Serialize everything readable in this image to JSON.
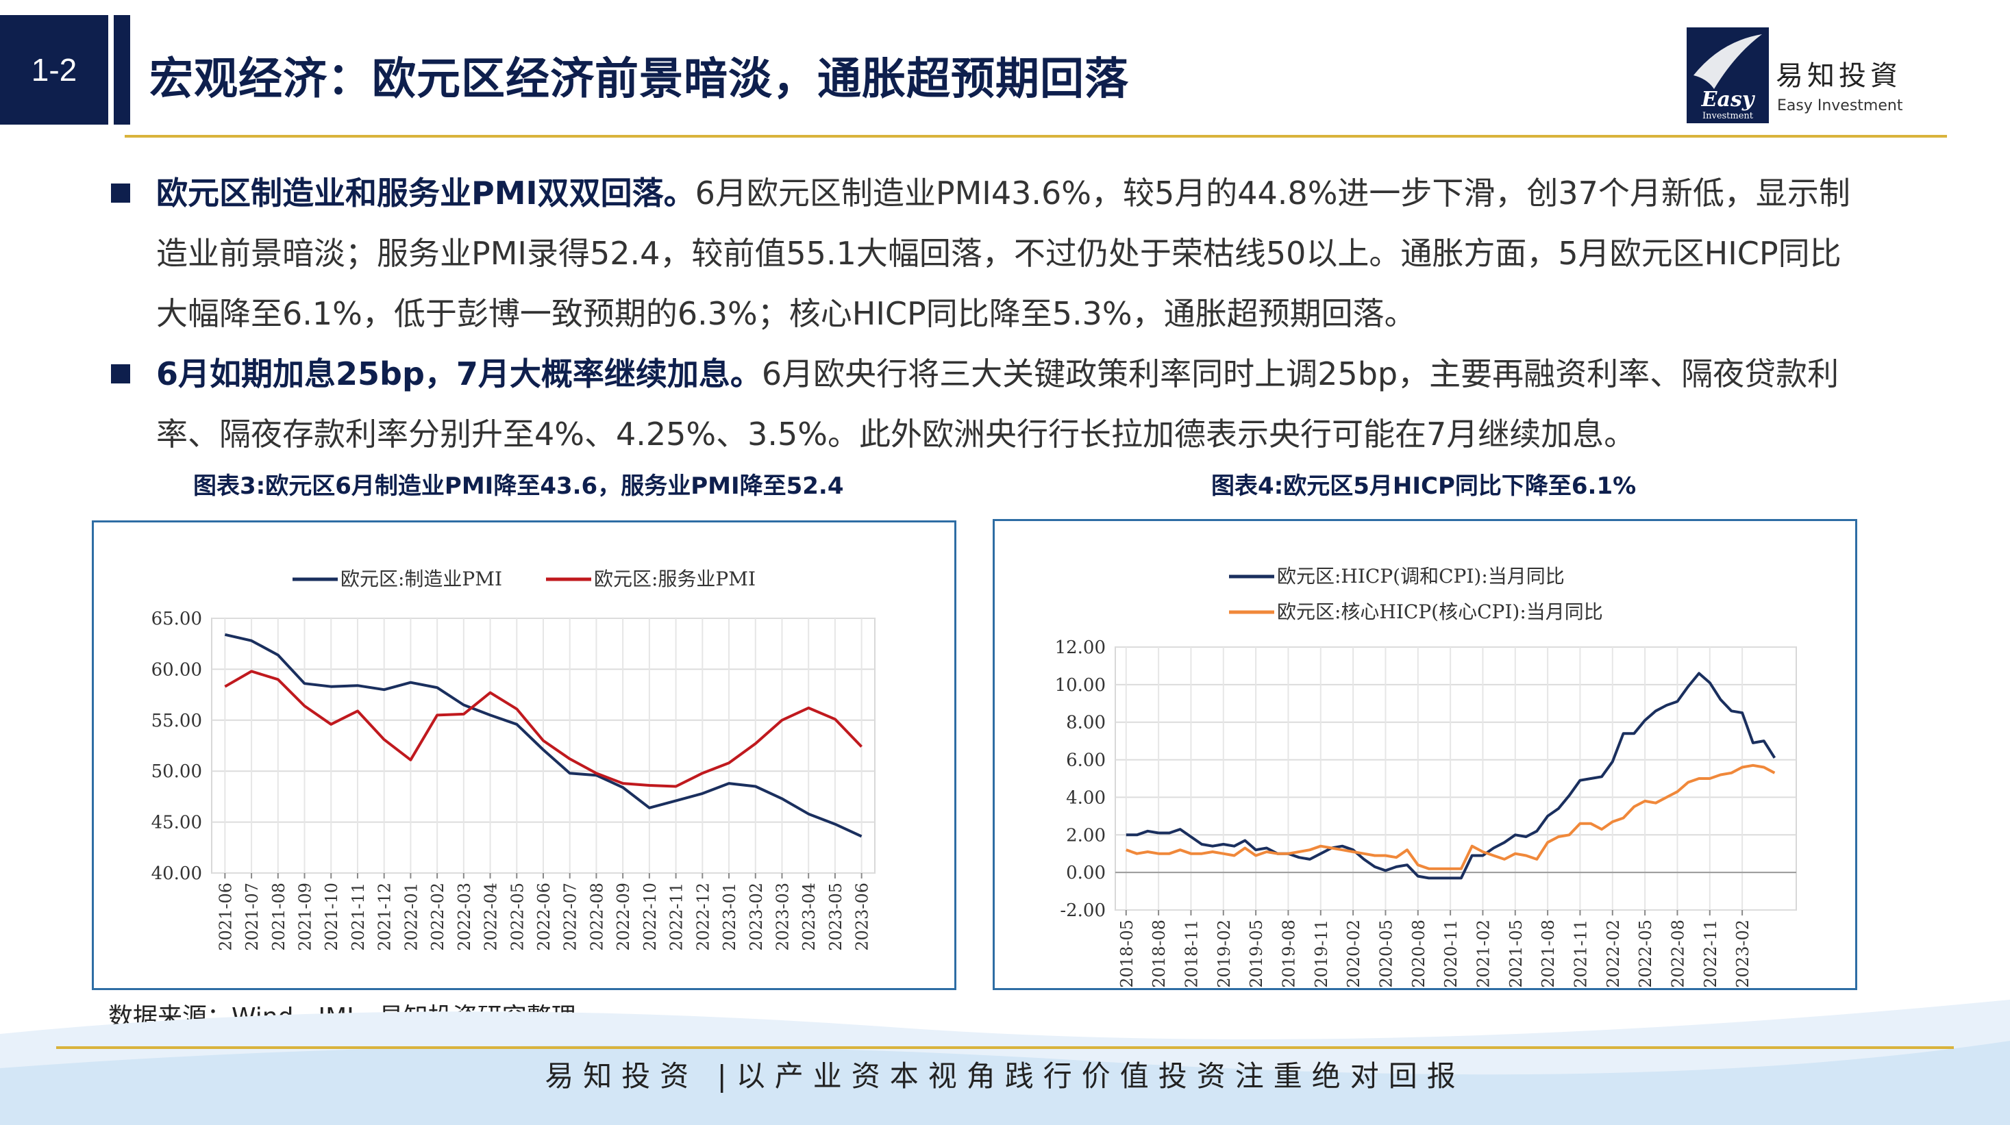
{
  "header": {
    "section_no": "1-2",
    "title": "宏观经济：欧元区经济前景暗淡，通胀超预期回落",
    "logo_cn": "易知投資",
    "logo_en": "Easy Investment",
    "logo_mark_text": "Easy",
    "logo_mark_sub": "Investment"
  },
  "bullets": [
    {
      "lead": "欧元区制造业和服务业PMI双双回落。",
      "body": "6月欧元区制造业PMI43.6%，较5月的44.8%进一步下滑，创37个月新低，显示制造业前景暗淡；服务业PMI录得52.4，较前值55.1大幅回落，不过仍处于荣枯线50以上。通胀方面，5月欧元区HICP同比大幅降至6.1%，低于彭博一致预期的6.3%；核心HICP同比降至5.3%，通胀超预期回落。"
    },
    {
      "lead": "6月如期加息25bp，7月大概率继续加息。",
      "body": "6月欧央行将三大关键政策利率同时上调25bp，主要再融资利率、隔夜贷款利率、隔夜存款利率分别升至4%、4.25%、3.5%。此外欧洲央行行长拉加德表示央行可能在7月继续加息。"
    }
  ],
  "source": "数据来源：Wind、IMI、易知投资研究整理",
  "footer": "易知投资 |以产业资本视角践行价值投资注重绝对回报",
  "colors": {
    "navy": "#0e1f4d",
    "gold": "#d9b33c",
    "frame": "#2e6da4",
    "pmi_mfg": "#1a2f5e",
    "pmi_svc": "#c0191e",
    "hicp_core": "#f0883a"
  },
  "chart_data": [
    {
      "type": "line",
      "title": "图表3:欧元区6月制造业PMI降至43.6，服务业PMI降至52.4",
      "ylim": [
        40,
        65
      ],
      "yticks": [
        "40.00",
        "45.00",
        "50.00",
        "55.00",
        "60.00",
        "65.00"
      ],
      "grid": true,
      "legend_position": "top",
      "categories": [
        "2021-06",
        "2021-07",
        "2021-08",
        "2021-09",
        "2021-10",
        "2021-11",
        "2021-12",
        "2022-01",
        "2022-02",
        "2022-03",
        "2022-04",
        "2022-05",
        "2022-06",
        "2022-07",
        "2022-08",
        "2022-09",
        "2022-10",
        "2022-11",
        "2022-12",
        "2023-01",
        "2023-02",
        "2023-03",
        "2023-04",
        "2023-05",
        "2023-06"
      ],
      "series": [
        {
          "name": "欧元区:制造业PMI",
          "color": "#1a2f5e",
          "values": [
            63.4,
            62.8,
            61.4,
            58.6,
            58.3,
            58.4,
            58.0,
            58.7,
            58.2,
            56.5,
            55.5,
            54.6,
            52.1,
            49.8,
            49.6,
            48.4,
            46.4,
            47.1,
            47.8,
            48.8,
            48.5,
            47.3,
            45.8,
            44.8,
            43.6
          ]
        },
        {
          "name": "欧元区:服务业PMI",
          "color": "#c0191e",
          "values": [
            58.3,
            59.8,
            59.0,
            56.4,
            54.6,
            55.9,
            53.1,
            51.1,
            55.5,
            55.6,
            57.7,
            56.1,
            53.0,
            51.2,
            49.8,
            48.8,
            48.6,
            48.5,
            49.8,
            50.8,
            52.7,
            55.0,
            56.2,
            55.1,
            52.4
          ]
        }
      ]
    },
    {
      "type": "line",
      "title": "图表4:欧元区5月HICP同比下降至6.1%",
      "ylim": [
        -2,
        12
      ],
      "yticks": [
        "-2.00",
        "0.00",
        "2.00",
        "4.00",
        "6.00",
        "8.00",
        "10.00",
        "12.00"
      ],
      "grid": true,
      "legend_position": "top-left",
      "categories": [
        "2018-05",
        "2018-08",
        "2018-11",
        "2019-02",
        "2019-05",
        "2019-08",
        "2019-11",
        "2020-02",
        "2020-05",
        "2020-08",
        "2020-11",
        "2021-02",
        "2021-05",
        "2021-08",
        "2021-11",
        "2022-02",
        "2022-05",
        "2022-08",
        "2022-11",
        "2023-02"
      ],
      "series": [
        {
          "name": "欧元区:HICP(调和CPI):当月同比",
          "color": "#1a2f5e",
          "x": [
            "2018-05",
            "2018-06",
            "2018-07",
            "2018-08",
            "2018-09",
            "2018-10",
            "2018-11",
            "2018-12",
            "2019-01",
            "2019-02",
            "2019-03",
            "2019-04",
            "2019-05",
            "2019-06",
            "2019-07",
            "2019-08",
            "2019-09",
            "2019-10",
            "2019-11",
            "2019-12",
            "2020-01",
            "2020-02",
            "2020-03",
            "2020-04",
            "2020-05",
            "2020-06",
            "2020-07",
            "2020-08",
            "2020-09",
            "2020-10",
            "2020-11",
            "2020-12",
            "2021-01",
            "2021-02",
            "2021-03",
            "2021-04",
            "2021-05",
            "2021-06",
            "2021-07",
            "2021-08",
            "2021-09",
            "2021-10",
            "2021-11",
            "2021-12",
            "2022-01",
            "2022-02",
            "2022-03",
            "2022-04",
            "2022-05",
            "2022-06",
            "2022-07",
            "2022-08",
            "2022-09",
            "2022-10",
            "2022-11",
            "2022-12",
            "2023-01",
            "2023-02",
            "2023-03",
            "2023-04",
            "2023-05"
          ],
          "values": [
            2.0,
            2.0,
            2.2,
            2.1,
            2.1,
            2.3,
            1.9,
            1.5,
            1.4,
            1.5,
            1.4,
            1.7,
            1.2,
            1.3,
            1.0,
            1.0,
            0.8,
            0.7,
            1.0,
            1.3,
            1.4,
            1.2,
            0.7,
            0.3,
            0.1,
            0.3,
            0.4,
            -0.2,
            -0.3,
            -0.3,
            -0.3,
            -0.3,
            0.9,
            0.9,
            1.3,
            1.6,
            2.0,
            1.9,
            2.2,
            3.0,
            3.4,
            4.1,
            4.9,
            5.0,
            5.1,
            5.9,
            7.4,
            7.4,
            8.1,
            8.6,
            8.9,
            9.1,
            9.9,
            10.6,
            10.1,
            9.2,
            8.6,
            8.5,
            6.9,
            7.0,
            6.1
          ]
        },
        {
          "name": "欧元区:核心HICP(核心CPI):当月同比",
          "color": "#f0883a",
          "x": [
            "2018-05",
            "2018-06",
            "2018-07",
            "2018-08",
            "2018-09",
            "2018-10",
            "2018-11",
            "2018-12",
            "2019-01",
            "2019-02",
            "2019-03",
            "2019-04",
            "2019-05",
            "2019-06",
            "2019-07",
            "2019-08",
            "2019-09",
            "2019-10",
            "2019-11",
            "2019-12",
            "2020-01",
            "2020-02",
            "2020-03",
            "2020-04",
            "2020-05",
            "2020-06",
            "2020-07",
            "2020-08",
            "2020-09",
            "2020-10",
            "2020-11",
            "2020-12",
            "2021-01",
            "2021-02",
            "2021-03",
            "2021-04",
            "2021-05",
            "2021-06",
            "2021-07",
            "2021-08",
            "2021-09",
            "2021-10",
            "2021-11",
            "2021-12",
            "2022-01",
            "2022-02",
            "2022-03",
            "2022-04",
            "2022-05",
            "2022-06",
            "2022-07",
            "2022-08",
            "2022-09",
            "2022-10",
            "2022-11",
            "2022-12",
            "2023-01",
            "2023-02",
            "2023-03",
            "2023-04",
            "2023-05"
          ],
          "values": [
            1.2,
            1.0,
            1.1,
            1.0,
            1.0,
            1.2,
            1.0,
            1.0,
            1.1,
            1.0,
            0.9,
            1.3,
            0.9,
            1.1,
            1.0,
            1.0,
            1.1,
            1.2,
            1.4,
            1.3,
            1.2,
            1.1,
            1.0,
            0.9,
            0.9,
            0.8,
            1.2,
            0.4,
            0.2,
            0.2,
            0.2,
            0.2,
            1.4,
            1.1,
            0.9,
            0.7,
            1.0,
            0.9,
            0.7,
            1.6,
            1.9,
            2.0,
            2.6,
            2.6,
            2.3,
            2.7,
            2.9,
            3.5,
            3.8,
            3.7,
            4.0,
            4.3,
            4.8,
            5.0,
            5.0,
            5.2,
            5.3,
            5.6,
            5.7,
            5.6,
            5.3
          ]
        }
      ]
    }
  ]
}
